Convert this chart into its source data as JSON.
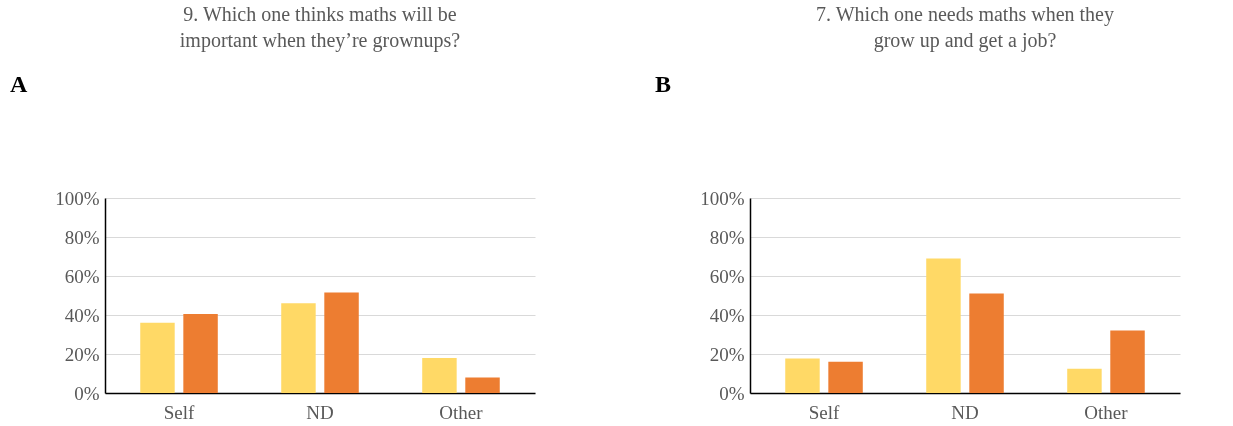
{
  "chart_data": [
    {
      "type": "bar",
      "title": "9. Which one thinks maths will be important when they’re grownups?",
      "annotations": [
        "A"
      ],
      "categories": [
        "Self",
        "ND",
        "Other"
      ],
      "series": [
        {
          "color": "#ffd966",
          "values": [
            36,
            46,
            18
          ]
        },
        {
          "color": "#ed7d31",
          "values": [
            40.5,
            51.5,
            8
          ]
        }
      ],
      "ylim": [
        0,
        100
      ],
      "yticks": [
        {
          "value": 0,
          "label": "0%"
        },
        {
          "value": 20,
          "label": "20%"
        },
        {
          "value": 40,
          "label": "40%"
        },
        {
          "value": 60,
          "label": "60%"
        },
        {
          "value": 80,
          "label": "80%"
        },
        {
          "value": 100,
          "label": "100%"
        }
      ],
      "grid": "y"
    },
    {
      "type": "bar",
      "title": "7. Which one needs maths when they grow up and get a job?",
      "annotations": [
        "B"
      ],
      "categories": [
        "Self",
        "ND",
        "Other"
      ],
      "series": [
        {
          "color": "#ffd966",
          "values": [
            17.7,
            69,
            12.5
          ]
        },
        {
          "color": "#ed7d31",
          "values": [
            16,
            51,
            32
          ]
        }
      ],
      "ylim": [
        0,
        100
      ],
      "yticks": [
        {
          "value": 0,
          "label": "0%"
        },
        {
          "value": 20,
          "label": "20%"
        },
        {
          "value": 40,
          "label": "40%"
        },
        {
          "value": 60,
          "label": "60%"
        },
        {
          "value": 80,
          "label": "80%"
        },
        {
          "value": 100,
          "label": "100%"
        }
      ],
      "grid": "y"
    }
  ]
}
